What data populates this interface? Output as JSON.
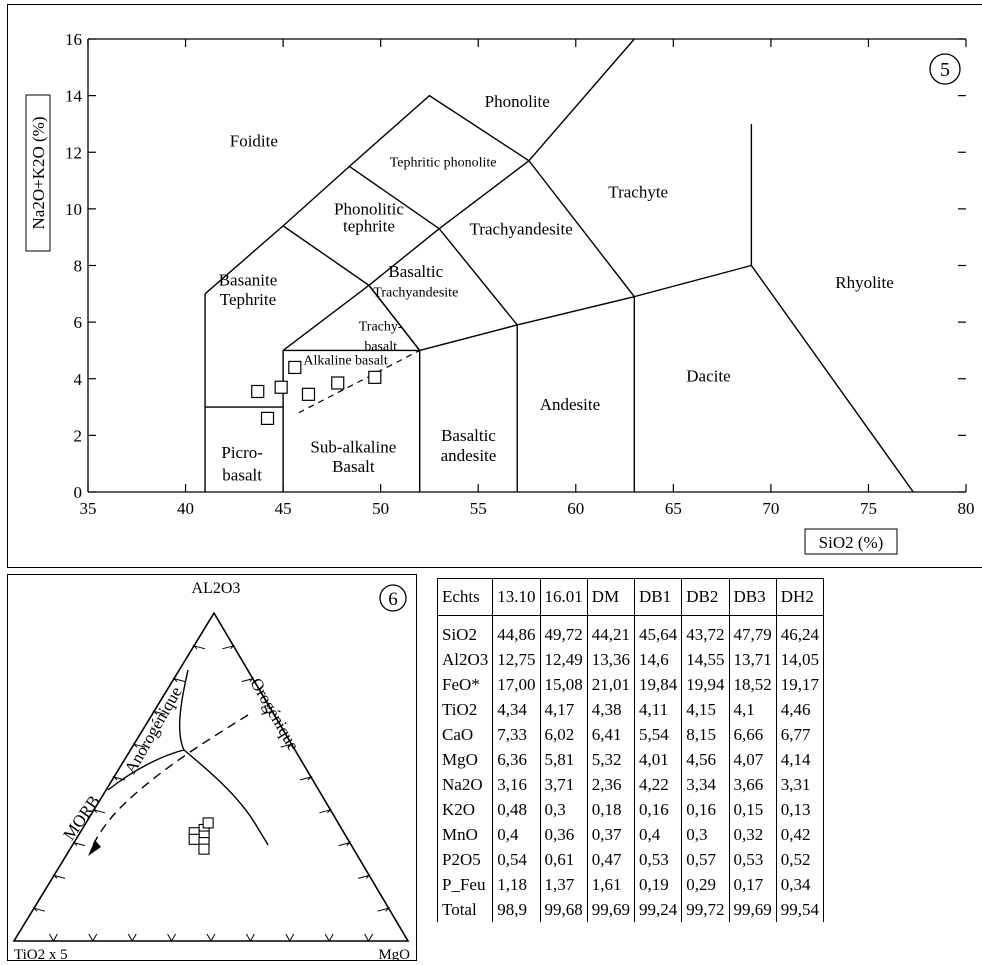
{
  "chart_data": [
    {
      "type": "scatter",
      "panel_number": "5",
      "ylabel": "Na2O+K2O (%)",
      "xlabel": "SiO2 (%)",
      "xlim": [
        35,
        80
      ],
      "ylim": [
        0,
        16
      ],
      "x_ticks": [
        "35",
        "40",
        "45",
        "50",
        "55",
        "60",
        "65",
        "70",
        "75",
        "80"
      ],
      "y_ticks": [
        "0",
        "2",
        "4",
        "6",
        "8",
        "10",
        "12",
        "14",
        "16"
      ],
      "points": [
        {
          "x": 43.7,
          "y": 3.55
        },
        {
          "x": 44.2,
          "y": 2.6
        },
        {
          "x": 44.9,
          "y": 3.7
        },
        {
          "x": 45.6,
          "y": 4.4
        },
        {
          "x": 46.3,
          "y": 3.45
        },
        {
          "x": 47.8,
          "y": 3.85
        },
        {
          "x": 49.7,
          "y": 4.05
        }
      ],
      "field_labels": [
        {
          "text": "Phonolite",
          "x": 57.0,
          "y": 13.6
        },
        {
          "text": "Foidite",
          "x": 43.5,
          "y": 12.2
        },
        {
          "text": "Tephritic phonolite",
          "x": 53.2,
          "y": 11.5
        },
        {
          "text": "Trachyte",
          "x": 63.2,
          "y": 10.4
        },
        {
          "text": "Phonolitic",
          "x": 49.4,
          "y": 9.8
        },
        {
          "text": "tephrite",
          "x": 49.4,
          "y": 9.2
        },
        {
          "text": "Trachyandesite",
          "x": 57.2,
          "y": 9.1
        },
        {
          "text": "Basaltic",
          "x": 51.8,
          "y": 7.6
        },
        {
          "text": "Trachyandesite",
          "x": 51.8,
          "y": 6.9
        },
        {
          "text": "Basanite",
          "x": 43.2,
          "y": 7.3
        },
        {
          "text": "Tephrite",
          "x": 43.2,
          "y": 6.6
        },
        {
          "text": "Rhyolite",
          "x": 74.8,
          "y": 7.2
        },
        {
          "text": "Trachy-",
          "x": 50.0,
          "y": 5.7
        },
        {
          "text": "basalt",
          "x": 50.0,
          "y": 5.0
        },
        {
          "text": "Alkaline basalt",
          "x": 48.2,
          "y": 4.5
        },
        {
          "text": "Dacite",
          "x": 66.8,
          "y": 3.9
        },
        {
          "text": "Andesite",
          "x": 59.7,
          "y": 2.9
        },
        {
          "text": "Basaltic",
          "x": 54.5,
          "y": 1.8
        },
        {
          "text": "andesite",
          "x": 54.5,
          "y": 1.1
        },
        {
          "text": "Sub-alkaline",
          "x": 48.6,
          "y": 1.4
        },
        {
          "text": "Basalt",
          "x": 48.6,
          "y": 0.7
        },
        {
          "text": "Picro-",
          "x": 42.9,
          "y": 1.2
        },
        {
          "text": "basalt",
          "x": 42.9,
          "y": 0.4
        }
      ]
    },
    {
      "type": "scatter",
      "panel_number": "6",
      "vertex_labels": {
        "top": "AL2O3",
        "left": "TiO2 x 5",
        "right": "MgO"
      },
      "field_labels": [
        "Anorogénique",
        "Orogénique",
        "MORB"
      ],
      "points": [
        {
          "x": 0.29,
          "y": 0.33
        },
        {
          "x": 0.31,
          "y": 0.34
        },
        {
          "x": 0.32,
          "y": 0.32
        },
        {
          "x": 0.3,
          "y": 0.31
        },
        {
          "x": 0.33,
          "y": 0.3
        },
        {
          "x": 0.31,
          "y": 0.36
        },
        {
          "x": 0.34,
          "y": 0.28
        }
      ]
    },
    {
      "type": "table",
      "columns": [
        "Echts",
        "13.10",
        "16.01",
        "DM",
        "DB1",
        "DB2",
        "DB3",
        "DH2"
      ],
      "rows": [
        [
          "SiO2",
          "44,86",
          "49,72",
          "44,21",
          "45,64",
          "43,72",
          "47,79",
          "46,24"
        ],
        [
          "Al2O3",
          "12,75",
          "12,49",
          "13,36",
          "14,6",
          "14,55",
          "13,71",
          "14,05"
        ],
        [
          "FeO*",
          "17,00",
          "15,08",
          "21,01",
          "19,84",
          "19,94",
          "18,52",
          "19,17"
        ],
        [
          "TiO2",
          "4,34",
          "4,17",
          "4,38",
          "4,11",
          "4,15",
          "4,1",
          "4,46"
        ],
        [
          "CaO",
          "7,33",
          "6,02",
          "6,41",
          "5,54",
          "8,15",
          "6,66",
          "6,77"
        ],
        [
          "MgO",
          "6,36",
          "5,81",
          "5,32",
          "4,01",
          "4,56",
          "4,07",
          "4,14"
        ],
        [
          "Na2O",
          "3,16",
          "3,71",
          "2,36",
          "4,22",
          "3,34",
          "3,66",
          "3,31"
        ],
        [
          "K2O",
          "0,48",
          "0,3",
          "0,18",
          "0,16",
          "0,16",
          "0,15",
          "0,13"
        ],
        [
          "MnO",
          "0,4",
          "0,36",
          "0,37",
          "0,4",
          "0,3",
          "0,32",
          "0,42"
        ],
        [
          "P2O5",
          "0,54",
          "0,61",
          "0,47",
          "0,53",
          "0,57",
          "0,53",
          "0,52"
        ],
        [
          "P_Feu",
          "1,18",
          "1,37",
          "1,61",
          "0,19",
          "0,29",
          "0,17",
          "0,34"
        ],
        [
          "Total",
          "98,9",
          "99,68",
          "99,69",
          "99,24",
          "99,72",
          "99,69",
          "99,54"
        ]
      ]
    }
  ]
}
